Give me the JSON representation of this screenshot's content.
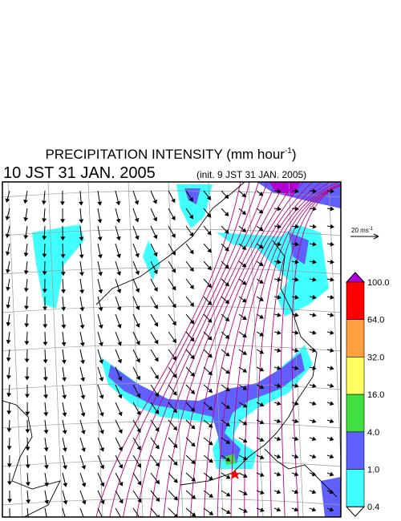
{
  "header": {
    "title_main": "PRECIPITATION INTENSITY (mm hour",
    "title_sup": "-1",
    "title_end": ")",
    "valid_time": "10 JST 31 JAN. 2005",
    "init_time": "(init. 9 JST 31 JAN. 2005)"
  },
  "reference_vector": {
    "label": "20 ms",
    "label_sup": "-1"
  },
  "colorbar": {
    "labels": [
      "100.0",
      "64.0",
      "32.0",
      "16.0",
      "4.0",
      "1.0",
      "0.4"
    ],
    "colors": [
      "#ff0000",
      "#ffa040",
      "#ffff60",
      "#40e040",
      "#6060ff",
      "#40ffff"
    ],
    "top_color": "#b000e0",
    "bottom_color": "#ffffff"
  }
}
